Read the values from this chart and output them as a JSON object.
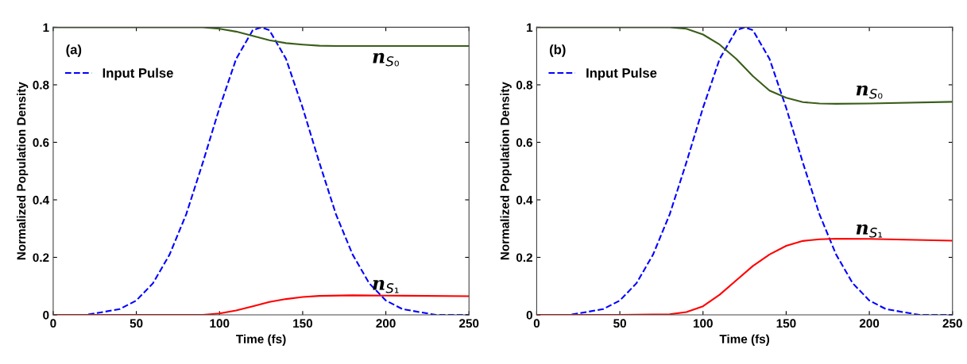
{
  "chart_data": [
    {
      "type": "line",
      "xlabel": "Time (fs)",
      "ylabel": "Normalized Population Density",
      "annotations": [
        "(a)"
      ],
      "xlim": [
        0,
        250
      ],
      "ylim": [
        0,
        1
      ],
      "xticks": [
        0,
        50,
        100,
        150,
        200,
        250
      ],
      "yticks": [
        0,
        0.2,
        0.4,
        0.6,
        0.8,
        1
      ],
      "grid": false,
      "legend": "top left",
      "series": [
        {
          "name": "Input Pulse",
          "color": "#0000ff",
          "line_style": "dashed",
          "x": [
            0,
            10,
            20,
            30,
            40,
            50,
            60,
            70,
            80,
            90,
            100,
            110,
            120,
            125,
            130,
            140,
            150,
            160,
            170,
            180,
            190,
            200,
            210,
            220,
            230,
            240,
            250
          ],
          "values": [
            0,
            0,
            0,
            0.01,
            0.02,
            0.05,
            0.11,
            0.21,
            0.35,
            0.53,
            0.72,
            0.89,
            0.99,
            1,
            0.99,
            0.89,
            0.72,
            0.53,
            0.35,
            0.21,
            0.11,
            0.05,
            0.02,
            0.01,
            0,
            0,
            0
          ]
        },
        {
          "name": "n$_{S₀}$",
          "color": "#3a5e1a",
          "line_style": "solid",
          "x": [
            0,
            50,
            90,
            100,
            110,
            120,
            130,
            140,
            150,
            160,
            170,
            200,
            250
          ],
          "values": [
            1,
            1,
            1,
            0.995,
            0.985,
            0.97,
            0.955,
            0.945,
            0.94,
            0.936,
            0.935,
            0.935,
            0.935
          ]
        },
        {
          "name": "n$_{S₁}$",
          "color": "#ff0000",
          "line_style": "solid",
          "x": [
            0,
            50,
            90,
            100,
            110,
            120,
            130,
            140,
            150,
            160,
            180,
            200,
            250
          ],
          "values": [
            0,
            0,
            0,
            0.005,
            0.015,
            0.03,
            0.045,
            0.055,
            0.062,
            0.066,
            0.068,
            0.067,
            0.065
          ]
        }
      ]
    },
    {
      "type": "line",
      "xlabel": "Time (fs)",
      "ylabel": "Normalized Population Density",
      "annotations": [
        "(b)"
      ],
      "xlim": [
        0,
        250
      ],
      "ylim": [
        0,
        1
      ],
      "xticks": [
        0,
        50,
        100,
        150,
        200,
        250
      ],
      "yticks": [
        0,
        0.2,
        0.4,
        0.6,
        0.8,
        1
      ],
      "grid": false,
      "legend": "top left",
      "series": [
        {
          "name": "Input Pulse",
          "color": "#0000ff",
          "line_style": "dashed",
          "x": [
            0,
            10,
            20,
            30,
            40,
            50,
            60,
            70,
            80,
            90,
            100,
            110,
            120,
            125,
            130,
            140,
            150,
            160,
            170,
            180,
            190,
            200,
            210,
            220,
            230,
            240,
            250
          ],
          "values": [
            0,
            0,
            0,
            0.01,
            0.02,
            0.05,
            0.11,
            0.21,
            0.35,
            0.53,
            0.72,
            0.89,
            0.99,
            1,
            0.99,
            0.89,
            0.72,
            0.53,
            0.35,
            0.21,
            0.11,
            0.05,
            0.02,
            0.01,
            0,
            0,
            0
          ]
        },
        {
          "name": "n$_{S₀}$",
          "color": "#3a5e1a",
          "line_style": "solid",
          "x": [
            0,
            50,
            80,
            90,
            100,
            110,
            120,
            130,
            140,
            150,
            160,
            170,
            180,
            200,
            250
          ],
          "values": [
            1,
            1,
            1,
            0.995,
            0.975,
            0.94,
            0.89,
            0.83,
            0.78,
            0.755,
            0.74,
            0.735,
            0.734,
            0.735,
            0.741
          ]
        },
        {
          "name": "n$_{S₁}$",
          "color": "#ff0000",
          "line_style": "solid",
          "x": [
            0,
            50,
            80,
            90,
            100,
            110,
            120,
            130,
            140,
            150,
            160,
            170,
            180,
            200,
            250
          ],
          "values": [
            0,
            0,
            0.002,
            0.01,
            0.03,
            0.07,
            0.12,
            0.17,
            0.21,
            0.24,
            0.257,
            0.263,
            0.265,
            0.264,
            0.258
          ]
        }
      ]
    }
  ]
}
